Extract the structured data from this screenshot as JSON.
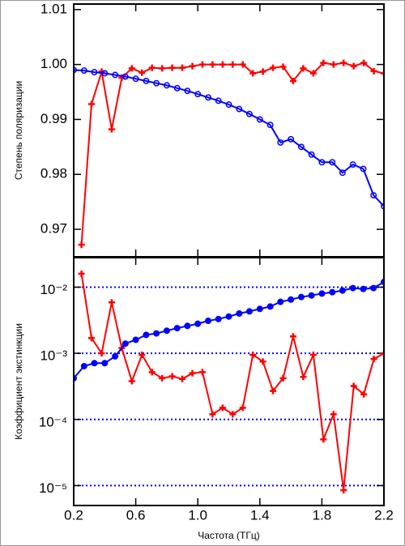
{
  "chart_data": [
    {
      "type": "line",
      "y_label": "Степень поляризации",
      "xlim": [
        0.2,
        2.2
      ],
      "ylim": [
        0.965,
        1.011
      ],
      "yticks": [
        0.97,
        0.98,
        0.99,
        {
          "value": 1,
          "label": "1.00"
        },
        1.01
      ],
      "series": [
        {
          "color": "#ff0000",
          "marker": "plus",
          "x": [
            0.25,
            0.315,
            0.38,
            0.445,
            0.51,
            0.575,
            0.64,
            0.705,
            0.77,
            0.835,
            0.9,
            0.965,
            1.03,
            1.095,
            1.16,
            1.225,
            1.29,
            1.355,
            1.42,
            1.485,
            1.55,
            1.615,
            1.68,
            1.745,
            1.81,
            1.875,
            1.94,
            2.005,
            2.07,
            2.135,
            2.2
          ],
          "values": [
            0.9672,
            0.9928,
            0.9987,
            0.9882,
            0.9976,
            0.9993,
            0.9985,
            0.9994,
            0.9993,
            0.9994,
            0.9994,
            0.9997,
            1.0,
            1.0,
            1.0,
            1.0,
            1.0,
            0.9984,
            0.9987,
            0.9994,
            0.9996,
            0.997,
            0.9993,
            0.9984,
            1.0003,
            1.0,
            1.0003,
            0.9997,
            1.0003,
            0.9988,
            0.9984
          ]
        },
        {
          "color": "#0000ff",
          "marker": "circle-open",
          "x": [
            0.2,
            0.267,
            0.333,
            0.4,
            0.467,
            0.533,
            0.6,
            0.667,
            0.733,
            0.8,
            0.867,
            0.933,
            1.0,
            1.067,
            1.133,
            1.2,
            1.267,
            1.333,
            1.4,
            1.467,
            1.533,
            1.6,
            1.667,
            1.733,
            1.8,
            1.867,
            1.933,
            2.0,
            2.067,
            2.133,
            2.2
          ],
          "values": [
            0.999,
            0.9989,
            0.9986,
            0.9984,
            0.9981,
            0.9978,
            0.9974,
            0.997,
            0.9966,
            0.9962,
            0.9957,
            0.9952,
            0.9946,
            0.994,
            0.9934,
            0.9927,
            0.9919,
            0.991,
            0.99,
            0.989,
            0.9858,
            0.9864,
            0.985,
            0.9836,
            0.9822,
            0.9822,
            0.9803,
            0.9818,
            0.981,
            0.9762,
            0.9742
          ]
        }
      ]
    },
    {
      "type": "line",
      "y_label": "Коэффициент экстинкции",
      "x_label": "Частота (ТГц)",
      "log_y": true,
      "grid": true,
      "grid_color": "#0000ff",
      "xlim": [
        0.2,
        2.2
      ],
      "xticks": [
        0.2,
        0.6,
        {
          "value": 1,
          "label": "1.0"
        },
        1.4,
        1.8,
        2.2
      ],
      "ylim": [
        5e-06,
        0.028
      ],
      "yticks": [
        {
          "value": 1e-05,
          "label": "10⁻⁵"
        },
        {
          "value": 0.0001,
          "label": "10⁻⁴"
        },
        {
          "value": 0.001,
          "label": "10⁻³"
        },
        {
          "value": 0.01,
          "label": "10⁻²"
        }
      ],
      "series": [
        {
          "color": "#ff0000",
          "marker": "plus",
          "x": [
            0.25,
            0.315,
            0.38,
            0.445,
            0.51,
            0.575,
            0.64,
            0.705,
            0.77,
            0.835,
            0.9,
            0.965,
            1.03,
            1.095,
            1.16,
            1.225,
            1.29,
            1.355,
            1.42,
            1.485,
            1.55,
            1.615,
            1.68,
            1.745,
            1.81,
            1.875,
            1.94,
            2.005,
            2.07,
            2.135,
            2.2
          ],
          "values": [
            0.016,
            0.0017,
            0.001,
            0.0059,
            0.0012,
            0.00038,
            0.00095,
            0.00052,
            0.00042,
            0.00045,
            0.00041,
            0.0005,
            0.00052,
            0.00012,
            0.00015,
            0.00012,
            0.00015,
            0.00095,
            0.00075,
            0.00027,
            0.00042,
            0.0018,
            0.00044,
            0.00095,
            5e-05,
            0.00012,
            8.5e-06,
            0.00032,
            0.00024,
            0.00082,
            0.001
          ]
        },
        {
          "color": "#0000ff",
          "marker": "circle",
          "x": [
            0.2,
            0.267,
            0.333,
            0.4,
            0.467,
            0.533,
            0.6,
            0.667,
            0.733,
            0.8,
            0.867,
            0.933,
            1.0,
            1.067,
            1.133,
            1.2,
            1.267,
            1.333,
            1.4,
            1.467,
            1.533,
            1.6,
            1.667,
            1.733,
            1.8,
            1.867,
            1.933,
            2.0,
            2.067,
            2.133,
            2.2
          ],
          "values": [
            0.00042,
            0.00064,
            0.00071,
            0.00071,
            0.0009,
            0.0014,
            0.0016,
            0.0019,
            0.002,
            0.0022,
            0.0024,
            0.0026,
            0.0028,
            0.0031,
            0.0033,
            0.0036,
            0.004,
            0.0043,
            0.0047,
            0.0051,
            0.006,
            0.0065,
            0.0071,
            0.0075,
            0.008,
            0.0084,
            0.0089,
            0.0097,
            0.0094,
            0.0097,
            0.012
          ]
        }
      ]
    }
  ]
}
